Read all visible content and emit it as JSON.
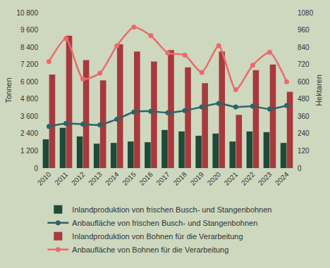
{
  "chart_data": {
    "type": "bar",
    "categories": [
      "2010",
      "2011",
      "2012",
      "2013",
      "2014",
      "2015",
      "2016",
      "2017",
      "2018",
      "2019",
      "2020",
      "2021",
      "2022",
      "2023",
      "2024"
    ],
    "y_label": "Tonnen",
    "y2_label": "Hektaren",
    "ylim": [
      0,
      10800
    ],
    "yticks": [
      0,
      {
        "value": 1200,
        "label": "1 200"
      },
      {
        "value": 2400,
        "label": "2 400"
      },
      {
        "value": 3600,
        "label": "3 600"
      },
      {
        "value": 4800,
        "label": "4 800"
      },
      {
        "value": 6000,
        "label": "6 000"
      },
      {
        "value": 7200,
        "label": "7 200"
      },
      {
        "value": 8400,
        "label": "8 400"
      },
      {
        "value": 9600,
        "label": "9 600"
      },
      {
        "value": 10800,
        "label": "10 800"
      }
    ],
    "y2lim": [
      0,
      1080
    ],
    "y2ticks": [
      0,
      120,
      240,
      360,
      480,
      600,
      720,
      840,
      960,
      1080
    ],
    "grid": false,
    "legend": "bottom",
    "series": [
      {
        "name": "Inlandproduktion von frischen Busch- und Stangenbohnen",
        "type": "bar",
        "color": "#1e4a38",
        "values": [
          2000,
          2800,
          2200,
          1700,
          1750,
          1850,
          1800,
          2650,
          2550,
          2250,
          2400,
          1850,
          2550,
          2500,
          1750
        ]
      },
      {
        "name": "Anbaufläche von frischen Busch- und Stangenbohnen",
        "type": "line",
        "axis": "y2",
        "color": "#2f6366",
        "marker": "circle",
        "values": [
          290,
          310,
          305,
          300,
          340,
          390,
          395,
          385,
          400,
          425,
          450,
          425,
          430,
          410,
          435
        ]
      },
      {
        "name": "Inlandproduktion von Bohnen für die Verarbeitung",
        "type": "bar",
        "color": "#a8393c",
        "values": [
          6500,
          9200,
          7500,
          6100,
          8600,
          8100,
          7400,
          8200,
          7000,
          5900,
          8100,
          3700,
          6800,
          7200,
          5300
        ]
      },
      {
        "name": "Anbaufläche von Bohnen für die Verarbeitung",
        "type": "line",
        "axis": "y2",
        "color": "#ec6a6c",
        "marker": "circle",
        "values": [
          740,
          900,
          620,
          660,
          850,
          980,
          920,
          800,
          785,
          665,
          850,
          545,
          715,
          805,
          600
        ]
      }
    ]
  }
}
